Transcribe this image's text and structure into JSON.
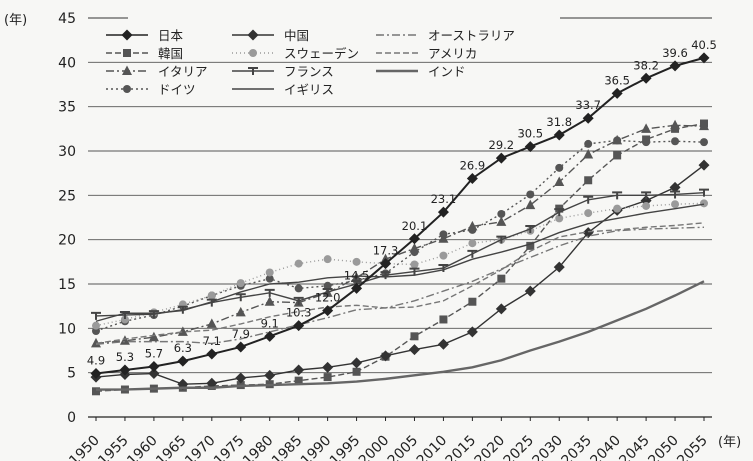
{
  "chart_data": {
    "type": "line",
    "y_unit": "(年)",
    "x_unit": "(年)",
    "ylim": [
      0,
      45
    ],
    "yticks": [
      0,
      5,
      10,
      15,
      20,
      25,
      30,
      35,
      40,
      45
    ],
    "x": [
      "1950",
      "1955",
      "1960",
      "1965",
      "1970",
      "1975",
      "1980",
      "1985",
      "1990",
      "1995",
      "2000",
      "2005",
      "2010",
      "2015",
      "2020",
      "2025",
      "2030",
      "2035",
      "2040",
      "2045",
      "2050",
      "2055"
    ],
    "grid": "horizontal",
    "legend": "top-left",
    "series": [
      {
        "name": "日本",
        "marker": "diamond",
        "dash": "",
        "color": "#222222",
        "values": [
          4.9,
          5.3,
          5.7,
          6.3,
          7.1,
          7.9,
          9.1,
          10.3,
          12.0,
          14.5,
          17.3,
          20.1,
          23.1,
          26.9,
          29.2,
          30.5,
          31.8,
          33.7,
          36.5,
          38.2,
          39.6,
          40.5
        ]
      },
      {
        "name": "韓国",
        "marker": "square",
        "dash": "6,3",
        "color": "#555555",
        "values": [
          2.9,
          3.1,
          3.2,
          3.3,
          3.5,
          3.6,
          3.7,
          4.1,
          4.5,
          5.1,
          6.8,
          9.1,
          11.0,
          13.0,
          15.6,
          19.3,
          23.5,
          26.7,
          29.5,
          31.3,
          32.5,
          33.1
        ]
      },
      {
        "name": "イタリア",
        "marker": "triangle",
        "dash": "8,3,2,3",
        "color": "#555555",
        "values": [
          8.3,
          8.6,
          9.0,
          9.6,
          10.5,
          11.8,
          13.0,
          12.9,
          14.0,
          15.7,
          17.8,
          19.0,
          20.1,
          21.5,
          22.0,
          23.9,
          26.5,
          29.6,
          31.2,
          32.5,
          32.9,
          32.8
        ]
      },
      {
        "name": "ドイツ",
        "marker": "circle",
        "dash": "2,3",
        "color": "#555555",
        "values": [
          9.7,
          10.8,
          11.5,
          12.5,
          13.7,
          14.8,
          15.6,
          14.5,
          14.8,
          15.4,
          16.2,
          18.6,
          20.6,
          21.1,
          22.9,
          25.1,
          28.1,
          30.8,
          31.2,
          31.0,
          31.1,
          31.0
        ]
      },
      {
        "name": "中国",
        "marker": "diamond",
        "dash": "",
        "color": "#333333",
        "values": [
          4.5,
          4.8,
          4.9,
          3.7,
          3.8,
          4.4,
          4.7,
          5.3,
          5.6,
          6.1,
          6.9,
          7.6,
          8.2,
          9.6,
          12.2,
          14.2,
          16.9,
          20.8,
          23.3,
          24.4,
          25.9,
          28.4
        ]
      },
      {
        "name": "スウェーデン",
        "marker": "circle",
        "dash": "1,3",
        "color": "#9a9a9a",
        "values": [
          10.3,
          11.0,
          11.8,
          12.7,
          13.7,
          15.1,
          16.3,
          17.3,
          17.8,
          17.5,
          17.3,
          17.2,
          18.2,
          19.6,
          20.0,
          21.0,
          22.4,
          23.0,
          23.5,
          23.8,
          24.0,
          24.1
        ]
      },
      {
        "name": "フランス",
        "marker": "cross",
        "dash": "",
        "color": "#444444",
        "values": [
          11.4,
          11.5,
          11.6,
          12.1,
          12.9,
          13.5,
          14.0,
          13.1,
          14.1,
          15.0,
          16.0,
          16.4,
          16.8,
          18.4,
          20.0,
          21.2,
          23.1,
          24.5,
          25.0,
          25.0,
          25.1,
          25.3
        ]
      },
      {
        "name": "イギリス",
        "marker": "none",
        "dash": "",
        "color": "#444444",
        "values": [
          10.8,
          11.7,
          11.7,
          12.0,
          13.0,
          14.1,
          15.0,
          15.2,
          15.7,
          15.9,
          15.8,
          16.0,
          16.6,
          17.8,
          18.6,
          19.5,
          20.8,
          21.8,
          22.4,
          23.0,
          23.5,
          24.0
        ]
      },
      {
        "name": "オーストラリア",
        "marker": "none",
        "dash": "8,3,2,3",
        "color": "#777777",
        "values": [
          8.2,
          8.5,
          8.5,
          8.5,
          8.3,
          8.8,
          9.6,
          10.4,
          11.2,
          12.1,
          12.3,
          13.1,
          14.2,
          15.3,
          16.7,
          18.0,
          19.3,
          20.4,
          21.0,
          21.2,
          21.3,
          21.4
        ]
      },
      {
        "name": "アメリカ",
        "marker": "none",
        "dash": "6,3",
        "color": "#777777",
        "values": [
          8.3,
          8.8,
          9.2,
          9.6,
          9.8,
          10.5,
          11.3,
          11.9,
          12.4,
          12.6,
          12.3,
          12.4,
          13.1,
          14.8,
          16.6,
          18.7,
          20.3,
          20.9,
          21.1,
          21.4,
          21.6,
          21.9
        ]
      },
      {
        "name": "インド",
        "marker": "none",
        "dash": "",
        "color": "#666666",
        "values": [
          3.1,
          3.1,
          3.2,
          3.3,
          3.3,
          3.5,
          3.6,
          3.7,
          3.8,
          4.0,
          4.3,
          4.7,
          5.1,
          5.6,
          6.4,
          7.5,
          8.5,
          9.6,
          10.9,
          12.2,
          13.7,
          15.3
        ]
      }
    ],
    "data_labels": [
      {
        "x": "1950",
        "text": "4.9"
      },
      {
        "x": "1955",
        "text": "5.3"
      },
      {
        "x": "1960",
        "text": "5.7"
      },
      {
        "x": "1965",
        "text": "6.3"
      },
      {
        "x": "1970",
        "text": "7.1"
      },
      {
        "x": "1975",
        "text": "7.9"
      },
      {
        "x": "1980",
        "text": "9.1"
      },
      {
        "x": "1985",
        "text": "10.3"
      },
      {
        "x": "1990",
        "text": "12.0"
      },
      {
        "x": "1995",
        "text": "14.5"
      },
      {
        "x": "2000",
        "text": "17.3"
      },
      {
        "x": "2005",
        "text": "20.1"
      },
      {
        "x": "2010",
        "text": "23.1"
      },
      {
        "x": "2015",
        "text": "26.9"
      },
      {
        "x": "2020",
        "text": "29.2"
      },
      {
        "x": "2025",
        "text": "30.5"
      },
      {
        "x": "2030",
        "text": "31.8"
      },
      {
        "x": "2035",
        "text": "33.7"
      },
      {
        "x": "2040",
        "text": "36.5"
      },
      {
        "x": "2045",
        "text": "38.2"
      },
      {
        "x": "2050",
        "text": "39.6"
      },
      {
        "x": "2055",
        "text": "40.5"
      }
    ],
    "legend_columns": [
      [
        "日本",
        "韓国",
        "イタリア",
        "ドイツ"
      ],
      [
        "中国",
        "スウェーデン",
        "フランス",
        "イギリス"
      ],
      [
        "オーストラリア",
        "アメリカ",
        "インド"
      ]
    ]
  }
}
